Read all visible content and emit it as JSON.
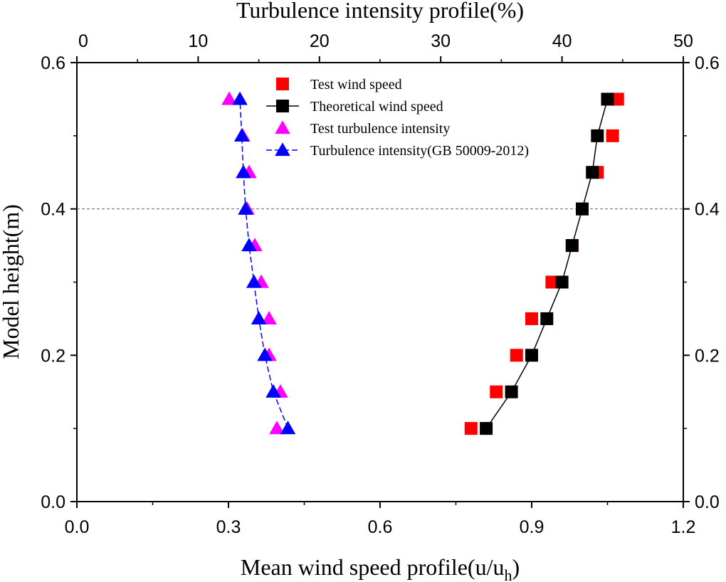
{
  "chart_data": {
    "type": "scatter",
    "title": "Turbulence intensity profile(%)",
    "x_label": [
      "Mean wind speed profile(u/u",
      "h",
      ")"
    ],
    "y_label": "Model height(m)",
    "xlim": [
      0,
      1.2
    ],
    "xticks": [
      {
        "value": 0,
        "label": "0.0"
      },
      0.3,
      0.6,
      0.9,
      1.2
    ],
    "x2lim": [
      0,
      50
    ],
    "x2ticks": [
      0,
      10,
      20,
      30,
      40,
      50
    ],
    "ylim": [
      0,
      0.6
    ],
    "yticks": [
      {
        "value": 0,
        "label": "0.0"
      },
      0.2,
      0.4,
      0.6
    ],
    "y2lim": [
      0,
      0.6
    ],
    "y2ticks": [
      {
        "value": 0,
        "label": "0.0"
      },
      0.2,
      0.4,
      0.6
    ],
    "reference_line": 0.4,
    "y": [
      0.1,
      0.15,
      0.2,
      0.25,
      0.3,
      0.35,
      0.4,
      0.45,
      0.5,
      0.55
    ],
    "series": [
      {
        "name": "Test wind speed",
        "color": "#ff0000",
        "marker": "square",
        "line": "none",
        "values": [
          0.78,
          0.83,
          0.87,
          0.9,
          0.94,
          0.98,
          1.0,
          1.03,
          1.06,
          1.07
        ]
      },
      {
        "name": "Theoretical wind speed",
        "color": "#000000",
        "marker": "square",
        "line": "solid",
        "values": [
          0.81,
          0.86,
          0.9,
          0.93,
          0.96,
          0.98,
          1.0,
          1.02,
          1.03,
          1.05
        ]
      },
      {
        "name": "Test turbulence intensity",
        "color": "#ff00ff",
        "marker": "triangle",
        "line": "none",
        "axis": "x2",
        "values": [
          16.49,
          16.78,
          15.85,
          15.85,
          15.2,
          14.67,
          14.03,
          14.2,
          13.67,
          12.56
        ]
      },
      {
        "name": "Turbulence intensity(GB 50009-2012)",
        "color": "#0000ff",
        "marker": "triangle",
        "line": "dashed",
        "axis": "x2",
        "values": [
          17.4,
          16.2,
          15.5,
          15.0,
          14.6,
          14.2,
          13.91,
          13.73,
          13.6,
          13.44
        ]
      }
    ]
  }
}
